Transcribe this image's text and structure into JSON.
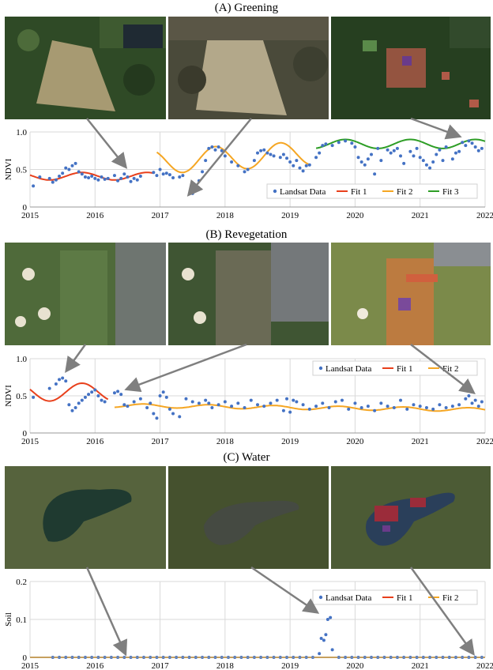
{
  "panels": [
    {
      "title": "(A) Greening"
    },
    {
      "title": "(B) Revegetation"
    },
    {
      "title": "(C) Water"
    }
  ],
  "colors": {
    "landsat": "#4472c4",
    "fit1": "#e8401c",
    "fit2": "#f5a623",
    "fit3": "#2e9e26",
    "arrow": "#7f7f7f",
    "grid": "#d9d9d9"
  },
  "chart_data": [
    {
      "type": "scatter",
      "ylabel": "NDVI",
      "xlim": [
        2015,
        2022
      ],
      "ylim": [
        0,
        1
      ],
      "yticks": [
        0,
        0.5,
        1
      ],
      "ytick_labels": [
        "0",
        "0.5",
        "1.0"
      ],
      "xticks": [
        2015,
        2016,
        2017,
        2018,
        2019,
        2020,
        2021,
        2022
      ],
      "xtick_labels": [
        "2015",
        "2016",
        "2017",
        "2018",
        "2019",
        "2020",
        "2021",
        "2022"
      ],
      "legend": [
        "Landsat Data",
        "Fit 1",
        "Fit 2",
        "Fit 3"
      ],
      "legend_position": "bottom-right",
      "series": [
        {
          "name": "Landsat Data",
          "kind": "points",
          "x": [
            2015.05,
            2015.15,
            2015.3,
            2015.35,
            2015.4,
            2015.45,
            2015.5,
            2015.55,
            2015.6,
            2015.65,
            2015.7,
            2015.75,
            2015.8,
            2015.85,
            2015.9,
            2015.95,
            2016.0,
            2016.05,
            2016.1,
            2016.15,
            2016.2,
            2016.3,
            2016.35,
            2016.4,
            2016.45,
            2016.5,
            2016.55,
            2016.6,
            2016.65,
            2016.7,
            2016.9,
            2016.95,
            2017.0,
            2017.05,
            2017.1,
            2017.15,
            2017.2,
            2017.3,
            2017.35,
            2017.5,
            2017.55,
            2017.6,
            2017.65,
            2017.7,
            2017.75,
            2017.8,
            2017.85,
            2017.9,
            2017.95,
            2018.0,
            2018.1,
            2018.2,
            2018.3,
            2018.35,
            2018.45,
            2018.5,
            2018.55,
            2018.6,
            2018.65,
            2018.7,
            2018.75,
            2018.85,
            2018.9,
            2018.95,
            2019.0,
            2019.05,
            2019.1,
            2019.15,
            2019.2,
            2019.25,
            2019.3,
            2019.4,
            2019.45,
            2019.5,
            2019.55,
            2019.65,
            2019.75,
            2019.85,
            2019.95,
            2020.0,
            2020.05,
            2020.1,
            2020.15,
            2020.2,
            2020.25,
            2020.3,
            2020.35,
            2020.4,
            2020.5,
            2020.55,
            2020.6,
            2020.65,
            2020.7,
            2020.75,
            2020.85,
            2020.9,
            2020.95,
            2021.0,
            2021.05,
            2021.1,
            2021.15,
            2021.2,
            2021.25,
            2021.3,
            2021.35,
            2021.4,
            2021.5,
            2021.55,
            2021.6,
            2021.65,
            2021.7,
            2021.75,
            2021.8,
            2021.85,
            2021.9,
            2021.95
          ],
          "y": [
            0.28,
            0.4,
            0.38,
            0.33,
            0.36,
            0.41,
            0.45,
            0.52,
            0.5,
            0.55,
            0.58,
            0.47,
            0.44,
            0.4,
            0.39,
            0.41,
            0.38,
            0.36,
            0.4,
            0.37,
            0.38,
            0.42,
            0.35,
            0.38,
            0.44,
            0.4,
            0.34,
            0.38,
            0.36,
            0.41,
            0.46,
            0.42,
            0.5,
            0.44,
            0.45,
            0.43,
            0.39,
            0.4,
            0.42,
            0.18,
            0.22,
            0.35,
            0.47,
            0.62,
            0.78,
            0.8,
            0.76,
            0.8,
            0.75,
            0.68,
            0.6,
            0.55,
            0.47,
            0.5,
            0.62,
            0.72,
            0.75,
            0.76,
            0.72,
            0.7,
            0.68,
            0.66,
            0.7,
            0.65,
            0.6,
            0.55,
            0.62,
            0.52,
            0.48,
            0.55,
            0.56,
            0.66,
            0.72,
            0.82,
            0.84,
            0.82,
            0.86,
            0.88,
            0.85,
            0.8,
            0.66,
            0.6,
            0.56,
            0.64,
            0.7,
            0.44,
            0.78,
            0.62,
            0.76,
            0.72,
            0.75,
            0.78,
            0.68,
            0.58,
            0.74,
            0.68,
            0.78,
            0.66,
            0.62,
            0.56,
            0.52,
            0.6,
            0.7,
            0.76,
            0.62,
            0.8,
            0.64,
            0.72,
            0.74,
            0.86,
            0.82,
            0.88,
            0.85,
            0.8,
            0.75,
            0.78
          ]
        },
        {
          "name": "Fit 1",
          "kind": "line",
          "segment": [
            2015.0,
            2016.9
          ],
          "base": 0.41,
          "amp": 0.05,
          "phase": 0.55
        },
        {
          "name": "Fit 2",
          "kind": "line",
          "segment": [
            2016.95,
            2019.3
          ],
          "base": 0.6,
          "amp": 0.16,
          "phase": 0.6,
          "trend": 0.05
        },
        {
          "name": "Fit 3",
          "kind": "line",
          "segment": [
            2019.4,
            2022.0
          ],
          "base": 0.84,
          "amp": 0.06,
          "phase": 0.6
        }
      ]
    },
    {
      "type": "scatter",
      "ylabel": "NDVI",
      "xlim": [
        2015,
        2022
      ],
      "ylim": [
        0,
        1
      ],
      "yticks": [
        0,
        0.5,
        1
      ],
      "ytick_labels": [
        "0",
        "0.5",
        "1.0"
      ],
      "xticks": [
        2015,
        2016,
        2017,
        2018,
        2019,
        2020,
        2021,
        2022
      ],
      "xtick_labels": [
        "2015",
        "2016",
        "2017",
        "2018",
        "2019",
        "2020",
        "2021",
        "2022"
      ],
      "legend": [
        "Landsat Data",
        "Fit 1",
        "Fit 2"
      ],
      "legend_position": "top-right",
      "series": [
        {
          "name": "Landsat Data",
          "kind": "points",
          "x": [
            2015.05,
            2015.3,
            2015.4,
            2015.45,
            2015.5,
            2015.55,
            2015.6,
            2015.65,
            2015.7,
            2015.75,
            2015.8,
            2015.85,
            2015.9,
            2015.95,
            2016.0,
            2016.05,
            2016.1,
            2016.15,
            2016.3,
            2016.35,
            2016.4,
            2016.45,
            2016.5,
            2016.6,
            2016.7,
            2016.8,
            2016.85,
            2016.9,
            2016.95,
            2017.0,
            2017.05,
            2017.1,
            2017.15,
            2017.2,
            2017.3,
            2017.4,
            2017.5,
            2017.6,
            2017.7,
            2017.75,
            2017.8,
            2017.9,
            2018.0,
            2018.1,
            2018.2,
            2018.3,
            2018.4,
            2018.5,
            2018.6,
            2018.7,
            2018.8,
            2018.9,
            2018.95,
            2019.0,
            2019.05,
            2019.1,
            2019.2,
            2019.3,
            2019.4,
            2019.5,
            2019.6,
            2019.7,
            2019.8,
            2019.9,
            2020.0,
            2020.1,
            2020.2,
            2020.3,
            2020.4,
            2020.5,
            2020.6,
            2020.7,
            2020.8,
            2020.9,
            2021.0,
            2021.1,
            2021.2,
            2021.3,
            2021.4,
            2021.5,
            2021.6,
            2021.7,
            2021.75,
            2021.8,
            2021.85,
            2021.9,
            2021.95
          ],
          "y": [
            0.48,
            0.6,
            0.66,
            0.72,
            0.74,
            0.7,
            0.38,
            0.3,
            0.34,
            0.4,
            0.44,
            0.48,
            0.52,
            0.55,
            0.58,
            0.5,
            0.44,
            0.42,
            0.54,
            0.56,
            0.52,
            0.38,
            0.36,
            0.42,
            0.46,
            0.34,
            0.4,
            0.26,
            0.2,
            0.5,
            0.55,
            0.48,
            0.32,
            0.26,
            0.22,
            0.46,
            0.42,
            0.4,
            0.44,
            0.4,
            0.34,
            0.38,
            0.42,
            0.36,
            0.4,
            0.34,
            0.44,
            0.38,
            0.36,
            0.4,
            0.44,
            0.3,
            0.46,
            0.28,
            0.44,
            0.42,
            0.38,
            0.32,
            0.36,
            0.4,
            0.34,
            0.42,
            0.44,
            0.32,
            0.4,
            0.34,
            0.36,
            0.3,
            0.4,
            0.36,
            0.34,
            0.44,
            0.32,
            0.38,
            0.36,
            0.34,
            0.32,
            0.38,
            0.34,
            0.36,
            0.38,
            0.46,
            0.5,
            0.4,
            0.44,
            0.36,
            0.42
          ]
        },
        {
          "name": "Fit 1",
          "kind": "line",
          "segment": [
            2015.0,
            2016.2
          ],
          "base": 0.55,
          "amp": 0.12,
          "phase": 0.55
        },
        {
          "name": "Fit 2",
          "kind": "line",
          "segment": [
            2016.3,
            2022.0
          ],
          "base": 0.37,
          "amp": 0.025,
          "phase": 0.5,
          "trend": -0.01
        }
      ]
    },
    {
      "type": "scatter",
      "ylabel": "Soil",
      "xlim": [
        2015,
        2022
      ],
      "ylim": [
        0,
        0.2
      ],
      "yticks": [
        0,
        0.1,
        0.2
      ],
      "ytick_labels": [
        "0",
        "0.1",
        "0.2"
      ],
      "xticks": [
        2015,
        2016,
        2017,
        2018,
        2019,
        2020,
        2021,
        2022
      ],
      "xtick_labels": [
        "2015",
        "2016",
        "2017",
        "2018",
        "2019",
        "2020",
        "2021",
        "2022"
      ],
      "legend": [
        "Landsat Data",
        "Fit 1",
        "Fit 2"
      ],
      "legend_position": "top-right",
      "series": [
        {
          "name": "Landsat Data",
          "kind": "points",
          "x": [
            2015.35,
            2015.45,
            2015.55,
            2015.65,
            2015.75,
            2015.85,
            2015.95,
            2016.05,
            2016.15,
            2016.25,
            2016.35,
            2016.45,
            2016.55,
            2016.65,
            2016.75,
            2016.85,
            2016.95,
            2017.05,
            2017.15,
            2017.25,
            2017.35,
            2017.45,
            2017.55,
            2017.65,
            2017.75,
            2017.85,
            2017.95,
            2018.05,
            2018.15,
            2018.25,
            2018.35,
            2018.45,
            2018.55,
            2018.65,
            2018.75,
            2018.85,
            2018.95,
            2019.05,
            2019.15,
            2019.25,
            2019.35,
            2019.45,
            2019.48,
            2019.52,
            2019.55,
            2019.58,
            2019.62,
            2019.65,
            2019.75,
            2019.85,
            2019.95,
            2020.05,
            2020.15,
            2020.25,
            2020.35,
            2020.45,
            2020.55,
            2020.65,
            2020.75,
            2020.85,
            2020.95,
            2021.05,
            2021.15,
            2021.25,
            2021.35,
            2021.45,
            2021.55,
            2021.65,
            2021.75,
            2021.85,
            2021.95
          ],
          "y": [
            0,
            0,
            0,
            0,
            0,
            0,
            0,
            0,
            0,
            0,
            0,
            0,
            0,
            0,
            0,
            0,
            0,
            0,
            0,
            0,
            0,
            0,
            0,
            0,
            0,
            0,
            0,
            0,
            0,
            0,
            0,
            0,
            0,
            0,
            0,
            0,
            0,
            0,
            0,
            0,
            0,
            0.01,
            0.05,
            0.045,
            0.06,
            0.1,
            0.105,
            0.02,
            0,
            0,
            0,
            0,
            0,
            0,
            0,
            0,
            0,
            0,
            0,
            0,
            0,
            0,
            0,
            0,
            0,
            0,
            0,
            0,
            0,
            0,
            0
          ]
        },
        {
          "name": "Fit 1",
          "kind": "flat",
          "segment": [
            2015.0,
            2022.0
          ],
          "value": 0
        },
        {
          "name": "Fit 2",
          "kind": "flat",
          "segment": [
            2015.0,
            2022.0
          ],
          "value": 0
        }
      ]
    }
  ]
}
